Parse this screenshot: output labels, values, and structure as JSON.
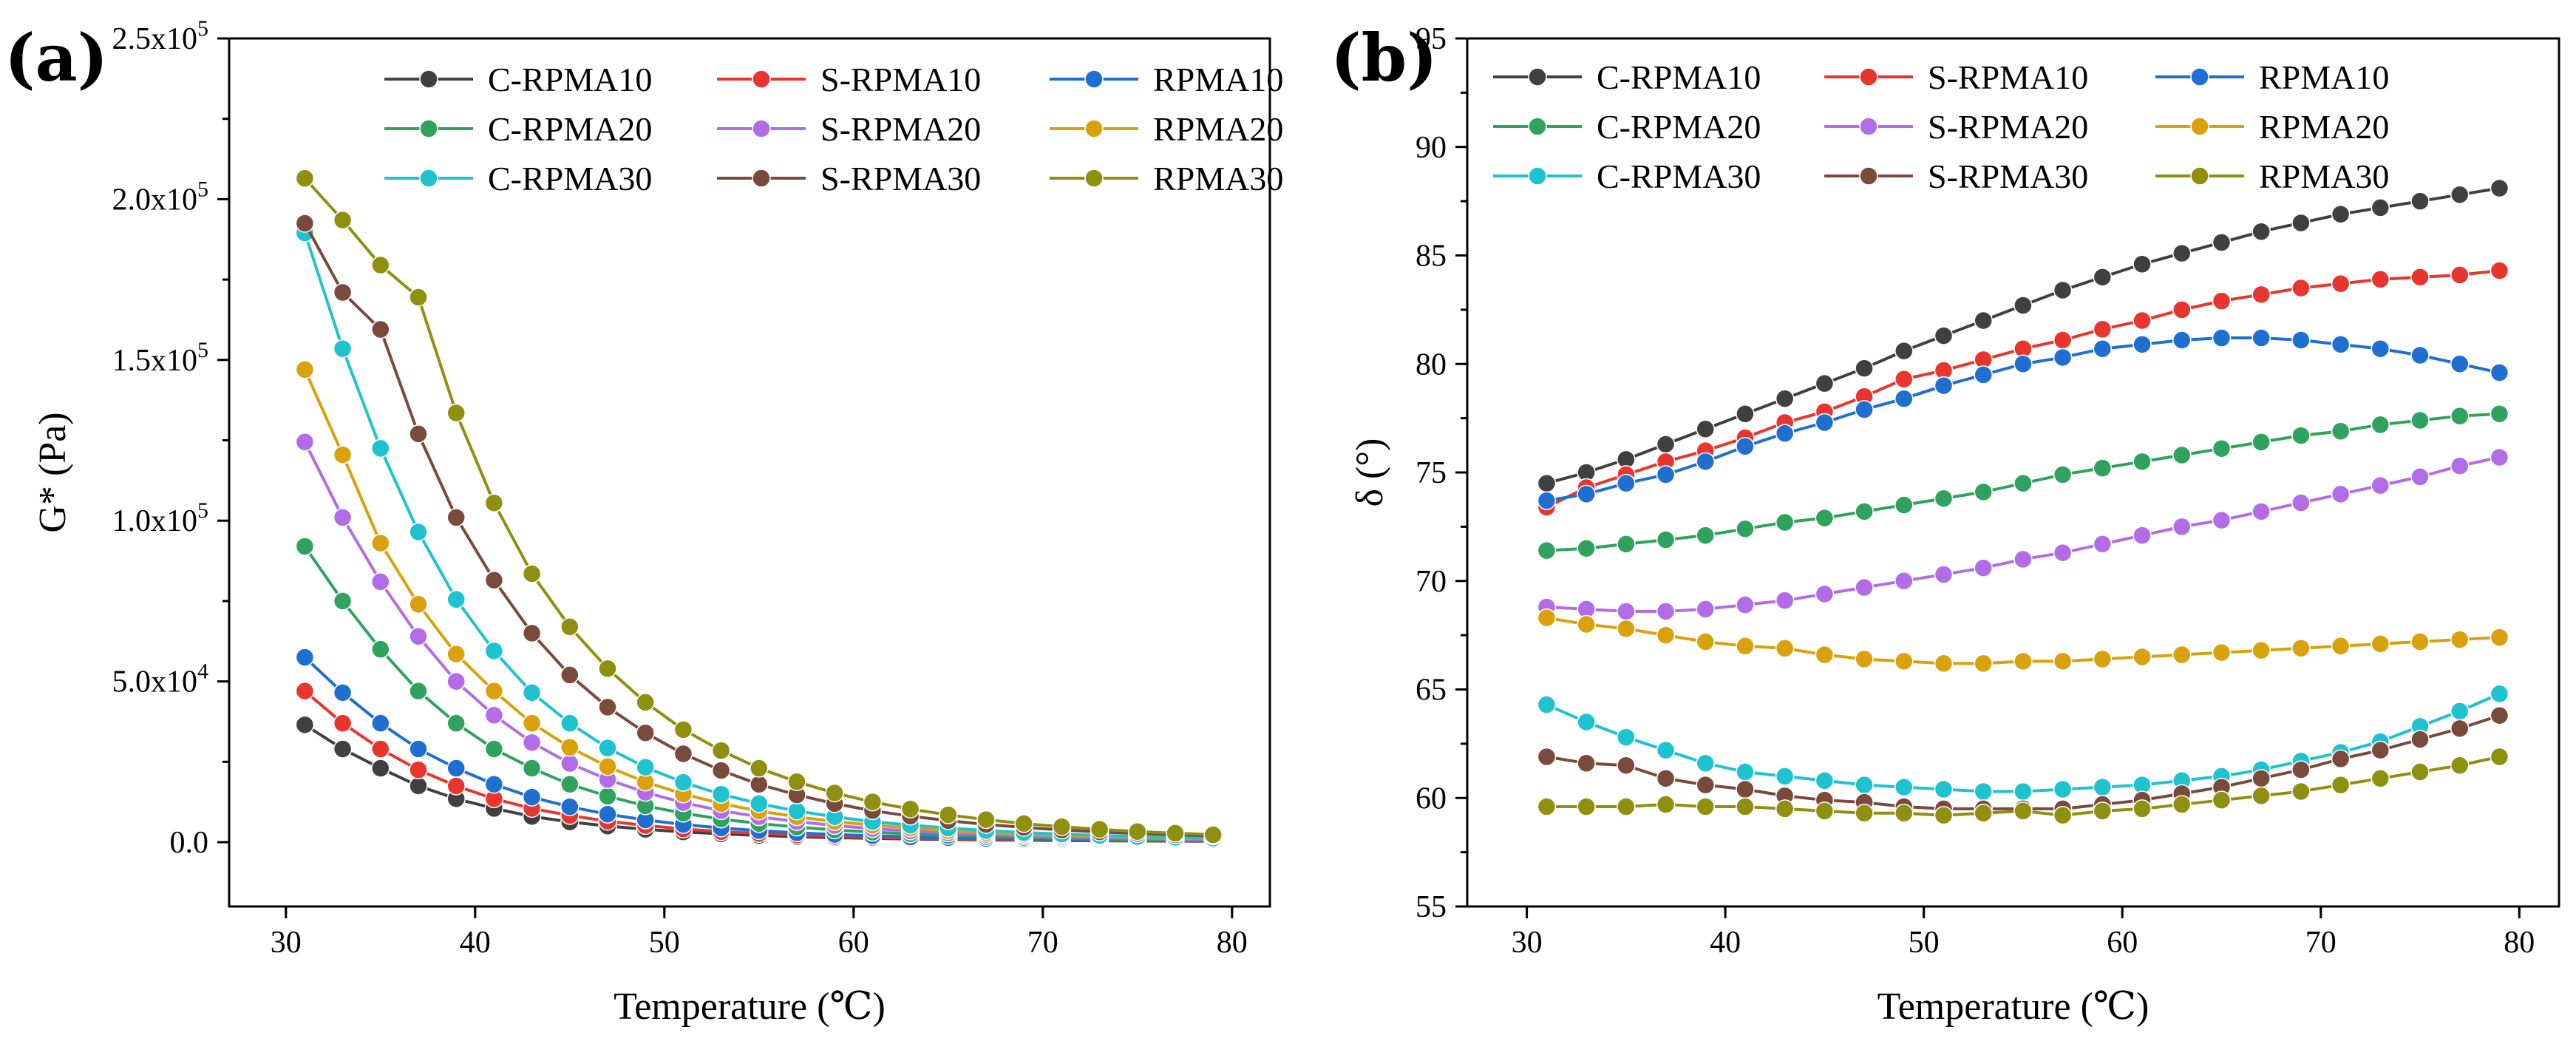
{
  "chart_data": [
    {
      "type": "line",
      "panel_label": "(a)",
      "title": "",
      "xlabel": "Temperature (℃)",
      "ylabel": "G* (Pa)",
      "xlim": [
        27,
        82
      ],
      "ylim": [
        -20000,
        250000
      ],
      "xticks": [
        30,
        40,
        50,
        60,
        70,
        80
      ],
      "xtick_labels": [
        "30",
        "40",
        "50",
        "60",
        "70",
        "80"
      ],
      "yticks": [
        0,
        50000,
        100000,
        150000,
        200000,
        250000
      ],
      "ytick_labels": [
        {
          "mant": "0.0",
          "exp": ""
        },
        {
          "mant": "5.0x10",
          "exp": "4"
        },
        {
          "mant": "1.0x10",
          "exp": "5"
        },
        {
          "mant": "1.5x10",
          "exp": "5"
        },
        {
          "mant": "2.0x10",
          "exp": "5"
        },
        {
          "mant": "2.5x10",
          "exp": "5"
        }
      ],
      "grid": false,
      "legend_position": "top-right",
      "legend_columns": 3,
      "x": [
        31,
        33,
        35,
        37,
        39,
        41,
        43,
        45,
        47,
        49,
        51,
        53,
        55,
        57,
        59,
        61,
        63,
        65,
        67,
        69,
        71,
        73,
        75,
        77,
        79
      ],
      "series": [
        {
          "name": "C-RPMA10",
          "color": "#404040",
          "values": [
            36500,
            29000,
            23000,
            17500,
            13500,
            10500,
            8000,
            6300,
            5000,
            4000,
            3200,
            2600,
            2100,
            1700,
            1400,
            1200,
            1000,
            850,
            700,
            600,
            500,
            430,
            380,
            330,
            290
          ]
        },
        {
          "name": "S-RPMA10",
          "color": "#e8352e",
          "values": [
            47000,
            37000,
            29000,
            22500,
            17500,
            13500,
            10500,
            8300,
            6500,
            5200,
            4100,
            3300,
            2700,
            2200,
            1800,
            1500,
            1250,
            1050,
            880,
            750,
            640,
            550,
            480,
            420,
            370
          ]
        },
        {
          "name": "RPMA10",
          "color": "#1f6fd1",
          "values": [
            57500,
            46500,
            37000,
            29000,
            23000,
            18000,
            14000,
            11000,
            8700,
            6900,
            5500,
            4400,
            3600,
            2900,
            2400,
            2000,
            1650,
            1400,
            1150,
            980,
            830,
            710,
            610,
            530,
            460
          ]
        },
        {
          "name": "C-RPMA20",
          "color": "#2fa35e",
          "values": [
            92000,
            75000,
            60000,
            47000,
            37000,
            29000,
            23000,
            18000,
            14300,
            11300,
            9000,
            7200,
            5800,
            4700,
            3800,
            3100,
            2600,
            2100,
            1750,
            1450,
            1200,
            1000,
            850,
            720,
            620
          ]
        },
        {
          "name": "S-RPMA20",
          "color": "#b36ce8",
          "values": [
            124500,
            101000,
            81000,
            64000,
            50000,
            39500,
            31000,
            24500,
            19500,
            15500,
            12300,
            9800,
            7900,
            6400,
            5200,
            4200,
            3500,
            2900,
            2400,
            2000,
            1650,
            1400,
            1180,
            1000,
            850
          ]
        },
        {
          "name": "RPMA20",
          "color": "#d9a10c",
          "values": [
            147000,
            120500,
            93000,
            74000,
            58500,
            47000,
            37000,
            29500,
            23500,
            18700,
            15000,
            12000,
            9700,
            7900,
            6400,
            5300,
            4400,
            3600,
            3000,
            2500,
            2100,
            1750,
            1480,
            1250,
            1060
          ]
        },
        {
          "name": "C-RPMA30",
          "color": "#1fc3cf",
          "values": [
            189500,
            153500,
            122500,
            96500,
            75500,
            59500,
            46500,
            37000,
            29300,
            23300,
            18600,
            14900,
            12000,
            9700,
            7900,
            6400,
            5300,
            4400,
            3600,
            3000,
            2500,
            2100,
            1750,
            1480,
            1250
          ]
        },
        {
          "name": "S-RPMA30",
          "color": "#7a4a3c",
          "values": [
            192500,
            171000,
            159500,
            127000,
            101000,
            81500,
            65000,
            52000,
            42000,
            34000,
            27500,
            22300,
            18000,
            14700,
            12000,
            9800,
            8100,
            6700,
            5500,
            4600,
            3800,
            3200,
            2700,
            2300,
            1950
          ]
        },
        {
          "name": "RPMA30",
          "color": "#8f8f10",
          "values": [
            206500,
            193500,
            179500,
            169500,
            133500,
            105500,
            83500,
            67000,
            54000,
            43500,
            35000,
            28500,
            23000,
            18800,
            15300,
            12500,
            10300,
            8500,
            7000,
            5800,
            4800,
            4000,
            3300,
            2800,
            2300
          ]
        }
      ]
    },
    {
      "type": "line",
      "panel_label": "(b)",
      "title": "",
      "xlabel": "Temperature (℃)",
      "ylabel": "δ (°)",
      "xlim": [
        27,
        82
      ],
      "ylim": [
        55,
        95
      ],
      "xticks": [
        30,
        40,
        50,
        60,
        70,
        80
      ],
      "xtick_labels": [
        "30",
        "40",
        "50",
        "60",
        "70",
        "80"
      ],
      "yticks": [
        55,
        60,
        65,
        70,
        75,
        80,
        85,
        90,
        95
      ],
      "ytick_labels": [
        "55",
        "60",
        "65",
        "70",
        "75",
        "80",
        "85",
        "90",
        "95"
      ],
      "grid": false,
      "legend_position": "top",
      "legend_columns": 3,
      "x": [
        31,
        33,
        35,
        37,
        39,
        41,
        43,
        45,
        47,
        49,
        51,
        53,
        55,
        57,
        59,
        61,
        63,
        65,
        67,
        69,
        71,
        73,
        75,
        77,
        79
      ],
      "series": [
        {
          "name": "C-RPMA10",
          "color": "#404040",
          "values": [
            74.5,
            75.0,
            75.6,
            76.3,
            77.0,
            77.7,
            78.4,
            79.1,
            79.8,
            80.6,
            81.3,
            82.0,
            82.7,
            83.4,
            84.0,
            84.6,
            85.1,
            85.6,
            86.1,
            86.5,
            86.9,
            87.2,
            87.5,
            87.8,
            88.1
          ]
        },
        {
          "name": "S-RPMA10",
          "color": "#e8352e",
          "values": [
            73.4,
            74.3,
            74.9,
            75.5,
            76.0,
            76.6,
            77.3,
            77.8,
            78.5,
            79.3,
            79.7,
            80.2,
            80.7,
            81.1,
            81.6,
            82.0,
            82.5,
            82.9,
            83.2,
            83.5,
            83.7,
            83.9,
            84.0,
            84.1,
            84.3
          ]
        },
        {
          "name": "RPMA10",
          "color": "#1f6fd1",
          "values": [
            73.7,
            74.0,
            74.5,
            74.9,
            75.5,
            76.2,
            76.8,
            77.3,
            77.9,
            78.4,
            79.0,
            79.5,
            80.0,
            80.3,
            80.7,
            80.9,
            81.1,
            81.2,
            81.2,
            81.1,
            80.9,
            80.7,
            80.4,
            80.0,
            79.6
          ]
        },
        {
          "name": "C-RPMA20",
          "color": "#2fa35e",
          "values": [
            71.4,
            71.5,
            71.7,
            71.9,
            72.1,
            72.4,
            72.7,
            72.9,
            73.2,
            73.5,
            73.8,
            74.1,
            74.5,
            74.9,
            75.2,
            75.5,
            75.8,
            76.1,
            76.4,
            76.7,
            76.9,
            77.2,
            77.4,
            77.6,
            77.7
          ]
        },
        {
          "name": "S-RPMA20",
          "color": "#b36ce8",
          "values": [
            68.8,
            68.7,
            68.6,
            68.6,
            68.7,
            68.9,
            69.1,
            69.4,
            69.7,
            70.0,
            70.3,
            70.6,
            71.0,
            71.3,
            71.7,
            72.1,
            72.5,
            72.8,
            73.2,
            73.6,
            74.0,
            74.4,
            74.8,
            75.3,
            75.7
          ]
        },
        {
          "name": "RPMA20",
          "color": "#d9a10c",
          "values": [
            68.3,
            68.0,
            67.8,
            67.5,
            67.2,
            67.0,
            66.9,
            66.6,
            66.4,
            66.3,
            66.2,
            66.2,
            66.3,
            66.3,
            66.4,
            66.5,
            66.6,
            66.7,
            66.8,
            66.9,
            67.0,
            67.1,
            67.2,
            67.3,
            67.4
          ]
        },
        {
          "name": "C-RPMA30",
          "color": "#1fc3cf",
          "values": [
            64.3,
            63.5,
            62.8,
            62.2,
            61.6,
            61.2,
            61.0,
            60.8,
            60.6,
            60.5,
            60.4,
            60.3,
            60.3,
            60.4,
            60.5,
            60.6,
            60.8,
            61.0,
            61.3,
            61.7,
            62.1,
            62.6,
            63.3,
            64.0,
            64.8
          ]
        },
        {
          "name": "S-RPMA30",
          "color": "#7a4a3c",
          "values": [
            61.9,
            61.6,
            61.5,
            60.9,
            60.6,
            60.4,
            60.1,
            59.9,
            59.8,
            59.6,
            59.5,
            59.5,
            59.5,
            59.5,
            59.7,
            59.9,
            60.2,
            60.5,
            60.9,
            61.3,
            61.8,
            62.2,
            62.7,
            63.2,
            63.8
          ]
        },
        {
          "name": "RPMA30",
          "color": "#8f8f10",
          "values": [
            59.6,
            59.6,
            59.6,
            59.7,
            59.6,
            59.6,
            59.5,
            59.4,
            59.3,
            59.3,
            59.2,
            59.3,
            59.4,
            59.2,
            59.4,
            59.5,
            59.7,
            59.9,
            60.1,
            60.3,
            60.6,
            60.9,
            61.2,
            61.5,
            61.9
          ]
        }
      ]
    }
  ]
}
